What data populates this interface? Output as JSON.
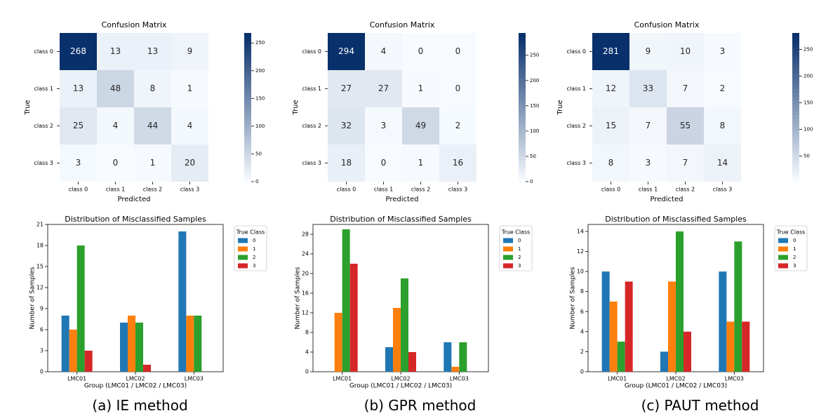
{
  "colors": {
    "heat_low": "#f7fbff",
    "heat_high": "#08306b",
    "series": [
      "#1f77b4",
      "#ff7f0e",
      "#2ca02c",
      "#d62728"
    ]
  },
  "panels": [
    {
      "caption": "(a)  IE  method",
      "confusion": {
        "title": "Confusion Matrix",
        "xlabel": "Predicted",
        "ylabel": "True",
        "row_labels": [
          "class 0",
          "class 1",
          "class 2",
          "class 3"
        ],
        "col_labels": [
          "class 0",
          "class 1",
          "class 2",
          "class 3"
        ],
        "matrix": [
          [
            268,
            13,
            13,
            9
          ],
          [
            13,
            48,
            8,
            1
          ],
          [
            25,
            4,
            44,
            4
          ],
          [
            3,
            0,
            1,
            20
          ]
        ],
        "vmin": 0,
        "vmax": 268,
        "colorbar_ticks": [
          0,
          50,
          100,
          150,
          200,
          250
        ]
      },
      "chart_data": {
        "type": "bar",
        "title": "Distribution of Misclassified Samples",
        "xlabel": "Group (LMC01 / LMC02 / LMC03)",
        "ylabel": "Number of Samples",
        "categories": [
          "LMC01",
          "LMC02",
          "LMC03"
        ],
        "ylim": [
          0,
          21
        ],
        "yticks": [
          0,
          3,
          6,
          9,
          12,
          15,
          18,
          21
        ],
        "legend_title": "True Class",
        "series": [
          {
            "name": "0",
            "values": [
              8,
              7,
              20
            ]
          },
          {
            "name": "1",
            "values": [
              6,
              8,
              8
            ]
          },
          {
            "name": "2",
            "values": [
              18,
              7,
              8
            ]
          },
          {
            "name": "3",
            "values": [
              3,
              1,
              0
            ]
          }
        ]
      }
    },
    {
      "caption": "(b)  GPR  method",
      "confusion": {
        "title": "Confusion Matrix",
        "xlabel": "Predicted",
        "ylabel": "True",
        "row_labels": [
          "class 0",
          "class 1",
          "class 2",
          "class 3"
        ],
        "col_labels": [
          "class 0",
          "class 1",
          "class 2",
          "class 3"
        ],
        "matrix": [
          [
            294,
            4,
            0,
            0
          ],
          [
            27,
            27,
            1,
            0
          ],
          [
            32,
            3,
            49,
            2
          ],
          [
            18,
            0,
            1,
            16
          ]
        ],
        "vmin": 0,
        "vmax": 294,
        "colorbar_ticks": [
          0,
          50,
          100,
          150,
          200,
          250
        ]
      },
      "chart_data": {
        "type": "bar",
        "title": "Distribution of Misclassified Samples",
        "xlabel": "Group (LMC01 / LMC02 / LMC03)",
        "ylabel": "Number of Samples",
        "categories": [
          "LMC01",
          "LMC02",
          "LMC03"
        ],
        "ylim": [
          0,
          30
        ],
        "yticks": [
          0,
          4,
          8,
          12,
          16,
          20,
          24,
          28
        ],
        "legend_title": "True Class",
        "series": [
          {
            "name": "0",
            "values": [
              0,
              5,
              6
            ]
          },
          {
            "name": "1",
            "values": [
              12,
              13,
              1
            ]
          },
          {
            "name": "2",
            "values": [
              29,
              19,
              6
            ]
          },
          {
            "name": "3",
            "values": [
              22,
              4,
              0
            ]
          }
        ]
      }
    },
    {
      "caption": "(c)  PAUT  method",
      "confusion": {
        "title": "Confusion Matrix",
        "xlabel": "Predicted",
        "ylabel": "True",
        "row_labels": [
          "class 0",
          "class 1",
          "class 2",
          "class 3"
        ],
        "col_labels": [
          "class 0",
          "class 1",
          "class 2",
          "class 3"
        ],
        "matrix": [
          [
            281,
            9,
            10,
            3
          ],
          [
            12,
            33,
            7,
            2
          ],
          [
            15,
            7,
            55,
            8
          ],
          [
            8,
            3,
            7,
            14
          ]
        ],
        "vmin": 2,
        "vmax": 281,
        "colorbar_ticks": [
          50,
          100,
          150,
          200,
          250
        ]
      },
      "chart_data": {
        "type": "bar",
        "title": "Distribution of Misclassified Samples",
        "xlabel": "Group (LMC01 / LMC02 / LMC03)",
        "ylabel": "Number of Samples",
        "categories": [
          "LMC01",
          "LMC02",
          "LMC03"
        ],
        "ylim": [
          0,
          14.7
        ],
        "yticks": [
          0,
          2,
          4,
          6,
          8,
          10,
          12,
          14
        ],
        "legend_title": "True Class",
        "series": [
          {
            "name": "0",
            "values": [
              10,
              2,
              10
            ]
          },
          {
            "name": "1",
            "values": [
              7,
              9,
              5
            ]
          },
          {
            "name": "2",
            "values": [
              3,
              14,
              13
            ]
          },
          {
            "name": "3",
            "values": [
              9,
              4,
              5
            ]
          }
        ]
      }
    }
  ]
}
